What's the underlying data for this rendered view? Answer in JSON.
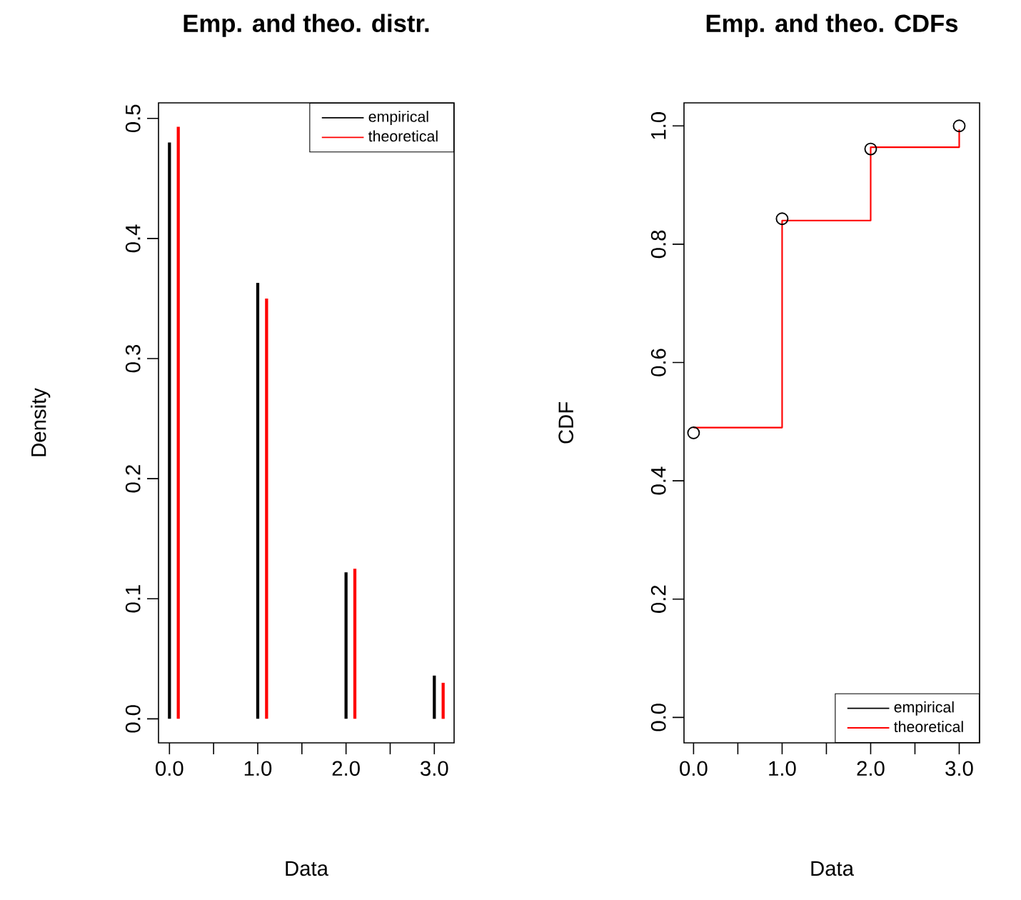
{
  "chart_data": [
    {
      "type": "bar",
      "title": "Emp. and theo. distr.",
      "xlabel": "Data",
      "ylabel": "Density",
      "series": [
        {
          "name": "empirical",
          "color": "#000000",
          "x": [
            0,
            1,
            2,
            3
          ],
          "values": [
            0.48,
            0.363,
            0.122,
            0.036
          ]
        },
        {
          "name": "theoretical",
          "color": "#ff0000",
          "x": [
            0.1,
            1.1,
            2.1,
            3.1
          ],
          "values": [
            0.493,
            0.35,
            0.125,
            0.03
          ]
        }
      ],
      "xlim": [
        -0.124,
        3.224
      ],
      "ylim": [
        -0.02,
        0.513
      ],
      "xticks": [
        {
          "value": 0,
          "label": "0.0"
        },
        {
          "value": 0.5,
          "label": null
        },
        {
          "value": 1,
          "label": "1.0"
        },
        {
          "value": 1.5,
          "label": null
        },
        {
          "value": 2,
          "label": "2.0"
        },
        {
          "value": 2.5,
          "label": null
        },
        {
          "value": 3,
          "label": "3.0"
        }
      ],
      "yticks": [
        {
          "value": 0,
          "label": "0.0"
        },
        {
          "value": 0.1,
          "label": "0.1"
        },
        {
          "value": 0.2,
          "label": "0.2"
        },
        {
          "value": 0.3,
          "label": "0.3"
        },
        {
          "value": 0.4,
          "label": "0.4"
        },
        {
          "value": 0.5,
          "label": "0.5"
        }
      ],
      "legend": "top right",
      "grid": false
    },
    {
      "type": "step",
      "title": "Emp. and theo. CDFs",
      "xlabel": "Data",
      "ylabel": "CDF",
      "series": [
        {
          "name": "empirical",
          "type": "scatter",
          "marker": "circle",
          "color": "#000000",
          "x": [
            0,
            1,
            2,
            3
          ],
          "values": [
            0.481,
            0.843,
            0.961,
            1.0
          ]
        },
        {
          "name": "theoretical",
          "type": "step",
          "color": "#ff0000",
          "x": [
            0,
            1,
            2,
            3
          ],
          "values": [
            0.49,
            0.84,
            0.964,
            0.994
          ]
        }
      ],
      "xlim": [
        -0.108,
        3.23
      ],
      "ylim": [
        -0.043,
        1.039
      ],
      "xticks": [
        {
          "value": 0,
          "label": "0.0"
        },
        {
          "value": 0.5,
          "label": null
        },
        {
          "value": 1,
          "label": "1.0"
        },
        {
          "value": 1.5,
          "label": null
        },
        {
          "value": 2,
          "label": "2.0"
        },
        {
          "value": 2.5,
          "label": null
        },
        {
          "value": 3,
          "label": "3.0"
        }
      ],
      "yticks": [
        {
          "value": 0,
          "label": "0.0"
        },
        {
          "value": 0.2,
          "label": "0.2"
        },
        {
          "value": 0.4,
          "label": "0.4"
        },
        {
          "value": 0.6,
          "label": "0.6"
        },
        {
          "value": 0.8,
          "label": "0.8"
        },
        {
          "value": 1,
          "label": "1.0"
        }
      ],
      "legend": "bottom right",
      "grid": false
    }
  ]
}
